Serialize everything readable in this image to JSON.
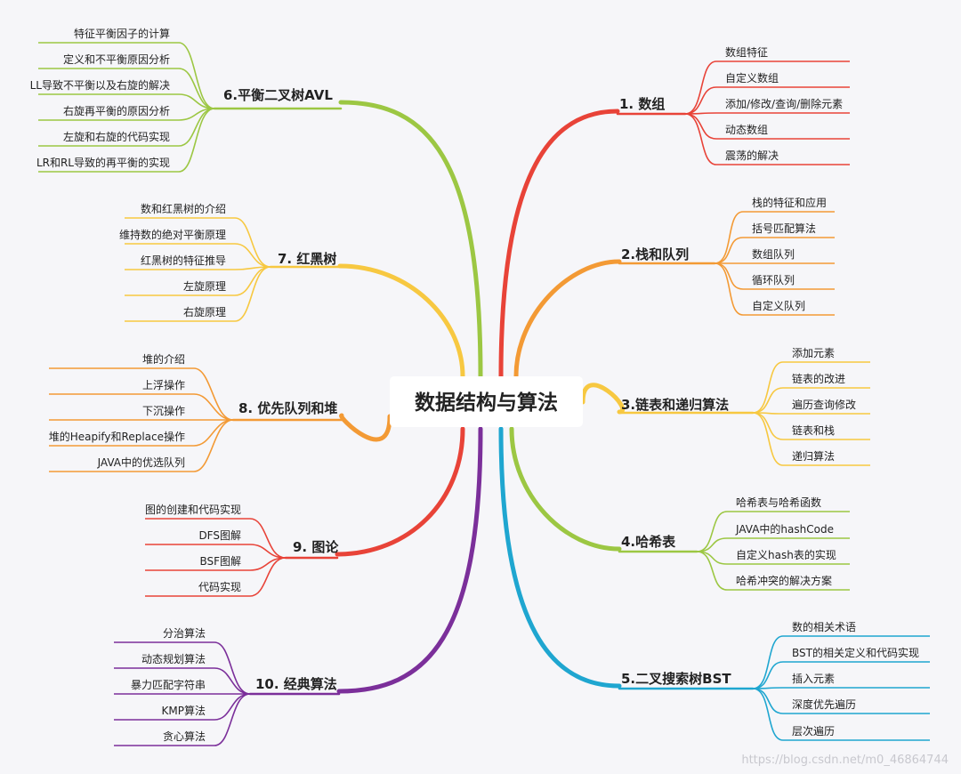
{
  "center": {
    "title": "数据结构与算法"
  },
  "branches": [
    {
      "id": "b1",
      "label": "1. 数组",
      "color": "#e84338",
      "leaves": [
        "数组特征",
        "自定义数组",
        "添加/修改/查询/删除元素",
        "动态数组",
        "震荡的解决"
      ]
    },
    {
      "id": "b2",
      "label": "2.栈和队列",
      "color": "#f39a35",
      "leaves": [
        "栈的特征和应用",
        "括号匹配算法",
        "数组队列",
        "循环队列",
        "自定义队列"
      ]
    },
    {
      "id": "b3",
      "label": "3.链表和递归算法",
      "color": "#f7c841",
      "leaves": [
        "添加元素",
        "链表的改进",
        "遍历查询修改",
        "链表和栈",
        "递归算法"
      ]
    },
    {
      "id": "b4",
      "label": "4.哈希表",
      "color": "#9cc743",
      "leaves": [
        "哈希表与哈希函数",
        "JAVA中的hashCode",
        "自定义hash表的实现",
        "哈希冲突的解决方案"
      ]
    },
    {
      "id": "b5",
      "label": "5.二叉搜索树BST",
      "color": "#1fa6d0",
      "leaves": [
        "数的相关术语",
        "BST的相关定义和代码实现",
        "插入元素",
        "深度优先遍历",
        "层次遍历"
      ]
    },
    {
      "id": "b6",
      "label": "6.平衡二叉树AVL",
      "color": "#9cc743",
      "leaves": [
        "特征平衡因子的计算",
        "定义和不平衡原因分析",
        "LL导致不平衡以及右旋的解决",
        "右旋再平衡的原因分析",
        "左旋和右旋的代码实现",
        "LR和RL导致的再平衡的实现"
      ]
    },
    {
      "id": "b7",
      "label": "7. 红黑树",
      "color": "#f7c841",
      "leaves": [
        "数和红黑树的介绍",
        "维持数的绝对平衡原理",
        "红黑树的特征推导",
        "左旋原理",
        "右旋原理"
      ]
    },
    {
      "id": "b8",
      "label": "8. 优先队列和堆",
      "color": "#f39a35",
      "leaves": [
        "堆的介绍",
        "上浮操作",
        "下沉操作",
        "堆的Heapify和Replace操作",
        "JAVA中的优选队列"
      ]
    },
    {
      "id": "b9",
      "label": "9. 图论",
      "color": "#e84338",
      "leaves": [
        "图的创建和代码实现",
        "DFS图解",
        "BSF图解",
        "代码实现"
      ]
    },
    {
      "id": "b10",
      "label": "10. 经典算法",
      "color": "#7b2f9a",
      "leaves": [
        "分治算法",
        "动态规划算法",
        "暴力匹配字符串",
        "KMP算法",
        "贪心算法"
      ]
    }
  ],
  "watermark": "https://blog.csdn.net/m0_46864744"
}
